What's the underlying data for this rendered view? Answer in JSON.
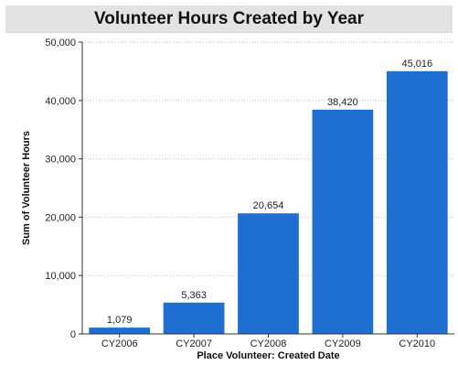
{
  "chart_data": {
    "type": "bar",
    "title": "Volunteer Hours Created by Year",
    "xlabel": "Place Volunteer: Created Date",
    "ylabel": "Sum of Volunteer Hours",
    "categories": [
      "CY2006",
      "CY2007",
      "CY2008",
      "CY2009",
      "CY2010"
    ],
    "values": [
      1079,
      5363,
      20654,
      38420,
      45016
    ],
    "data_labels": [
      "1,079",
      "5,363",
      "20,654",
      "38,420",
      "45,016"
    ],
    "ylim": [
      0,
      50000
    ],
    "yticks": [
      0,
      10000,
      20000,
      30000,
      40000,
      50000
    ],
    "ytick_labels": [
      "0",
      "10,000",
      "20,000",
      "30,000",
      "40,000",
      "50,000"
    ],
    "grid": true,
    "legend": "none",
    "bar_color": "#1f6fd2"
  }
}
